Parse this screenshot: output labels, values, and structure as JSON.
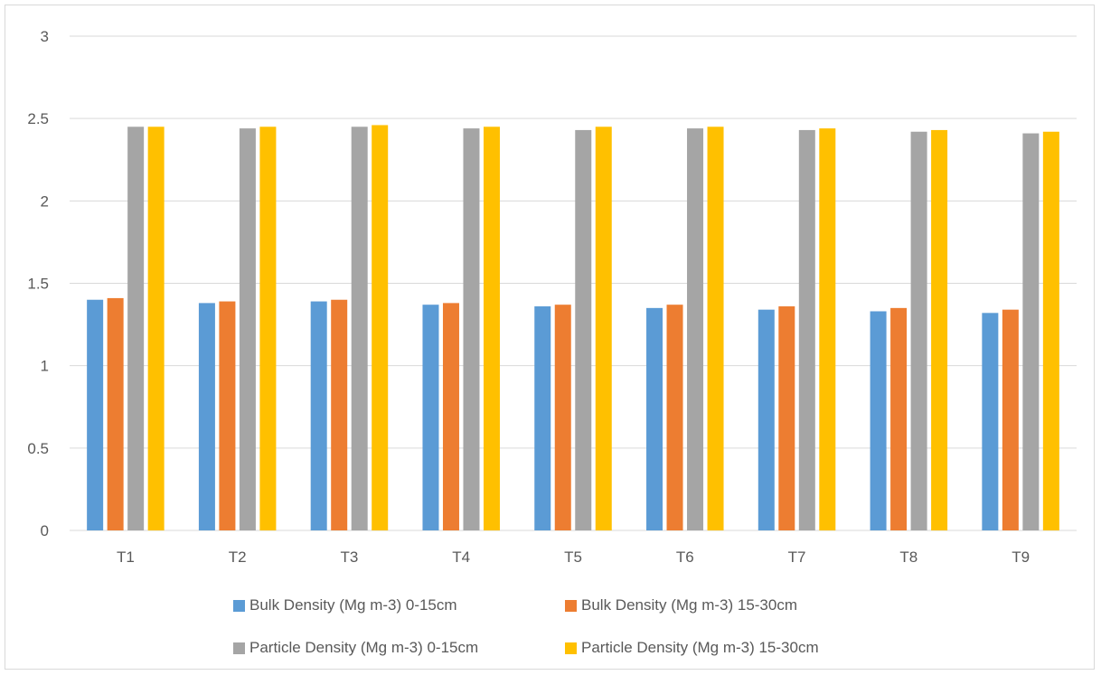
{
  "chart_data": {
    "type": "bar",
    "title": "",
    "xlabel": "",
    "ylabel": "",
    "ylim": [
      0,
      3
    ],
    "yticks": [
      "0",
      "0.5",
      "1",
      "1.5",
      "2",
      "2.5",
      "3"
    ],
    "categories": [
      "T1",
      "T2",
      "T3",
      "T4",
      "T5",
      "T6",
      "T7",
      "T8",
      "T9"
    ],
    "grid": "horizontal",
    "legend_position": "bottom",
    "series": [
      {
        "name": "Bulk Density (Mg m-3) 0-15cm",
        "color": "#5b9bd5",
        "values": [
          1.4,
          1.38,
          1.39,
          1.37,
          1.36,
          1.35,
          1.34,
          1.33,
          1.32
        ]
      },
      {
        "name": "Bulk Density (Mg m-3) 15-30cm",
        "color": "#ed7d31",
        "values": [
          1.41,
          1.39,
          1.4,
          1.38,
          1.37,
          1.37,
          1.36,
          1.35,
          1.34
        ]
      },
      {
        "name": "Particle Density (Mg m-3) 0-15cm",
        "color": "#a5a5a5",
        "values": [
          2.45,
          2.44,
          2.45,
          2.44,
          2.43,
          2.44,
          2.43,
          2.42,
          2.41
        ]
      },
      {
        "name": "Particle Density (Mg m-3) 15-30cm",
        "color": "#ffc000",
        "values": [
          2.45,
          2.45,
          2.46,
          2.45,
          2.45,
          2.45,
          2.44,
          2.43,
          2.42
        ]
      }
    ]
  }
}
